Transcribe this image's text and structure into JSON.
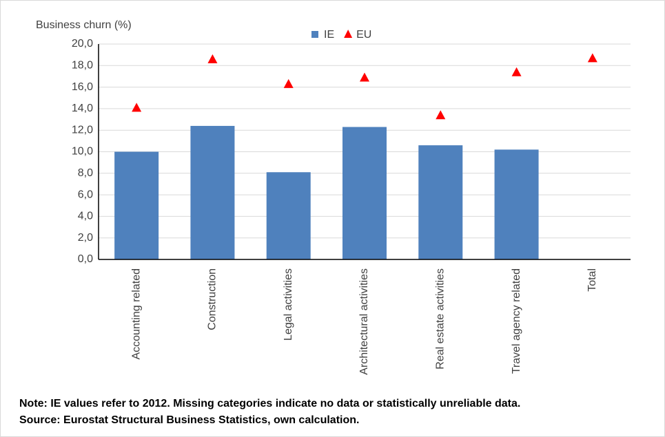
{
  "chart_data": {
    "type": "bar",
    "y_label": "Business churn (%)",
    "categories": [
      "Accounting related",
      "Construction",
      "Legal activities",
      "Architectural activities",
      "Real estate activities",
      "Travel agency related",
      "Total"
    ],
    "series": [
      {
        "name": "IE",
        "type": "bar",
        "color": "#4f81bd",
        "values": [
          10.0,
          12.4,
          8.1,
          12.3,
          10.6,
          10.2,
          null
        ]
      },
      {
        "name": "EU",
        "type": "scatter",
        "marker": "triangle",
        "color": "#ff0000",
        "values": [
          14.1,
          18.6,
          16.3,
          16.9,
          13.4,
          17.4,
          18.7
        ]
      }
    ],
    "ylim": [
      0,
      20
    ],
    "yticks": [
      {
        "value": 0,
        "label": "0,0"
      },
      {
        "value": 2,
        "label": "2,0"
      },
      {
        "value": 4,
        "label": "4,0"
      },
      {
        "value": 6,
        "label": "6,0"
      },
      {
        "value": 8,
        "label": "8,0"
      },
      {
        "value": 10,
        "label": "10,0"
      },
      {
        "value": 12,
        "label": "12,0"
      },
      {
        "value": 14,
        "label": "14,0"
      },
      {
        "value": 16,
        "label": "16,0"
      },
      {
        "value": 18,
        "label": "18,0"
      },
      {
        "value": 20,
        "label": "20,0"
      }
    ],
    "grid": true,
    "legend": "top",
    "notes": [
      "Note: IE values refer to 2012. Missing categories indicate no data or statistically unreliable data.",
      "Source: Eurostat Structural Business Statistics, own calculation."
    ]
  }
}
